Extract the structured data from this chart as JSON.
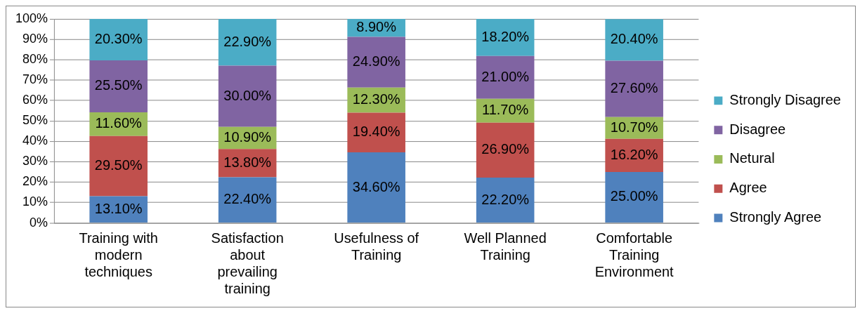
{
  "chart_data": {
    "type": "bar",
    "stacked": true,
    "categories": [
      "Training with modern techniques",
      "Satisfaction about prevailing training",
      "Usefulness of Training",
      "Well Planned Training",
      "Comfortable Training Environment"
    ],
    "series": [
      {
        "name": "Strongly Agree",
        "color": "#4f81bd",
        "values": [
          13.1,
          22.4,
          34.6,
          22.2,
          25.0
        ],
        "value_labels": [
          "13.10%",
          "22.40%",
          "34.60%",
          "22.20%",
          "25.00%"
        ]
      },
      {
        "name": "Agree",
        "color": "#c0504d",
        "values": [
          29.5,
          13.8,
          19.4,
          26.9,
          16.2
        ],
        "value_labels": [
          "29.50%",
          "13.80%",
          "19.40%",
          "26.90%",
          "16.20%"
        ]
      },
      {
        "name": "Netural",
        "color": "#9bbb59",
        "values": [
          11.6,
          10.9,
          12.3,
          11.7,
          10.7
        ],
        "value_labels": [
          "11.60%",
          "10.90%",
          "12.30%",
          "11.70%",
          "10.70%"
        ]
      },
      {
        "name": "Disagree",
        "color": "#8064a2",
        "values": [
          25.5,
          30.0,
          24.9,
          21.0,
          27.6
        ],
        "value_labels": [
          "25.50%",
          "30.00%",
          "24.90%",
          "21.00%",
          "27.60%"
        ]
      },
      {
        "name": "Strongly Disagree",
        "color": "#4bacc6",
        "values": [
          20.3,
          22.9,
          8.9,
          18.2,
          20.4
        ],
        "value_labels": [
          "20.30%",
          "22.90%",
          "8.90%",
          "18.20%",
          "20.40%"
        ]
      }
    ],
    "ylim": [
      0,
      100
    ],
    "yticks": [
      {
        "value": 0,
        "label": "0%"
      },
      {
        "value": 10,
        "label": "10%"
      },
      {
        "value": 20,
        "label": "20%"
      },
      {
        "value": 30,
        "label": "30%"
      },
      {
        "value": 40,
        "label": "40%"
      },
      {
        "value": 50,
        "label": "50%"
      },
      {
        "value": 60,
        "label": "60%"
      },
      {
        "value": 70,
        "label": "70%"
      },
      {
        "value": 80,
        "label": "80%"
      },
      {
        "value": 90,
        "label": "90%"
      },
      {
        "value": 100,
        "label": "100%"
      }
    ],
    "grid": "y",
    "legend": "right"
  }
}
